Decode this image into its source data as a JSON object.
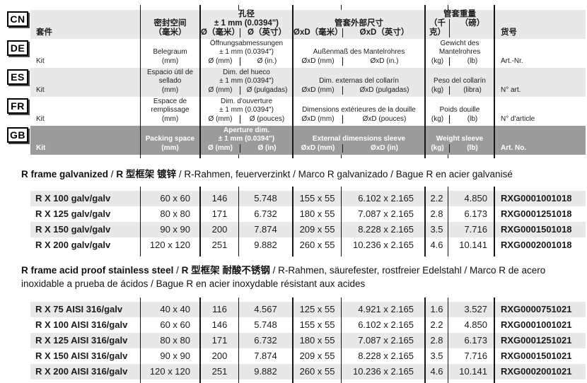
{
  "sep": " / ",
  "colors": {
    "row_light": "#e8e8e8",
    "row_dark": "#9b9b9b",
    "grid_line": "#151515",
    "badge_border": "#000000"
  },
  "header": {
    "rows": [
      {
        "lang": "CN",
        "kit": "套件",
        "packing": "密封空间\n（毫米）",
        "aperture": {
          "title": "孔径\n± 1 mm (0.0394\")",
          "mm": "Ø（毫米）",
          "inch": "Ø（英寸）"
        },
        "external": {
          "title": "管套外部尺寸",
          "mm": "ØxD（毫米）",
          "inch": "ØxD（英寸）"
        },
        "weight": {
          "title": "管套重量",
          "kg": "（千克）",
          "lb": "（磅）"
        },
        "art": "货号"
      },
      {
        "lang": "DE",
        "kit": "Kit",
        "packing": "Belegraum\n(mm)",
        "aperture": {
          "title": "Öffnungsabmessungen\n± 1 mm (0.0394\")",
          "mm": "Ø (mm)",
          "inch": "Ø (in.)"
        },
        "external": {
          "title": "Außenmaß des Mantelrohres",
          "mm": "ØxD (mm)",
          "inch": "ØxD (in.)"
        },
        "weight": {
          "title": "Gewicht des\nMantelrohres",
          "kg": "(kg)",
          "lb": "(lb)"
        },
        "art": "Art.-Nr."
      },
      {
        "lang": "ES",
        "kit": "Kit",
        "packing": "Espacio útil de\nsellado\n(mm)",
        "aperture": {
          "title": "Dim. del hueco\n± 1 mm (0.0394\")",
          "mm": "Ø (mm)",
          "inch": "Ø (pulgadas)"
        },
        "external": {
          "title": "Dim. externas del collarín",
          "mm": "ØxD (mm)",
          "inch": "ØxD (pulgadas)"
        },
        "weight": {
          "title": "Peso del collarín",
          "kg": "(kg)",
          "lb": "(libra)"
        },
        "art": "N° art."
      },
      {
        "lang": "FR",
        "kit": "Kit",
        "packing": "Espace de\nremplissage\n(mm)",
        "aperture": {
          "title": "Dim. d'ouverture\n± 1 mm (0.0394\")",
          "mm": "Ø (mm)",
          "inch": "Ø (pouces)"
        },
        "external": {
          "title": "Dimensions extérieures de la douille",
          "mm": "ØxD (mm)",
          "inch": "ØxD (pouces)"
        },
        "weight": {
          "title": "Poids douille",
          "kg": "(kg)",
          "lb": "(lb)"
        },
        "art": "N° d'article"
      },
      {
        "lang": "GB",
        "kit": "Kit",
        "packing": "Packing space\n(mm)",
        "aperture": {
          "title": "Aperture dim.\n± 1 mm (0.0394\")",
          "mm": "Ø (mm)",
          "inch": "Ø (in)"
        },
        "external": {
          "title": "External dimensions sleeve",
          "mm": "ØxD (mm)",
          "inch": "ØxD (in)"
        },
        "weight": {
          "title": "Weight sleeve",
          "kg": "(kg)",
          "lb": "(lb)"
        },
        "art": "Art. No."
      }
    ]
  },
  "sections": [
    {
      "title": {
        "en": "R frame galvanized",
        "cn": "R 型框架 镀锌",
        "rest": "R-Rahmen, feuerverzinkt / Marco R galvanizado / Bague R en acier galvanisé"
      },
      "rows": [
        {
          "kit": "R X 100 galv/galv",
          "packing": "60 x 60",
          "d_mm": "146",
          "d_in": "5.748",
          "e_mm": "155 x 55",
          "e_in": "6.102 x 2.165",
          "kg": "2.2",
          "lb": "4.850",
          "art": "RXG0001001018"
        },
        {
          "kit": "R X 125 galv/galv",
          "packing": "80 x 80",
          "d_mm": "171",
          "d_in": "6.732",
          "e_mm": "180 x 55",
          "e_in": "7.087 x 2.165",
          "kg": "2.8",
          "lb": "6.173",
          "art": "RXG0001251018"
        },
        {
          "kit": "R X 150 galv/galv",
          "packing": "90 x 90",
          "d_mm": "200",
          "d_in": "7.874",
          "e_mm": "209 x 55",
          "e_in": "8.228 x 2.165",
          "kg": "3.5",
          "lb": "7.716",
          "art": "RXG0001501018"
        },
        {
          "kit": "R X 200 galv/galv",
          "packing": "120 x 120",
          "d_mm": "251",
          "d_in": "9.882",
          "e_mm": "260 x 55",
          "e_in": "10.236 x 2.165",
          "kg": "4.6",
          "lb": "10.141",
          "art": "RXG0002001018"
        }
      ]
    },
    {
      "title": {
        "en": "R frame acid proof stainless steel",
        "cn": "R 型框架 耐酸不锈钢",
        "rest": "R-Rahmen, säurefester, rostfreier Edelstahl / Marco R de acero inoxidable a prueba de ácidos / Bague R en acier inoxydable résistant aux acides"
      },
      "rows": [
        {
          "kit": "R X 75 AISI 316/galv",
          "packing": "40 x 40",
          "d_mm": "116",
          "d_in": "4.567",
          "e_mm": "125 x 55",
          "e_in": "4.921 x 2.165",
          "kg": "1.6",
          "lb": "3.527",
          "art": "RXG0000751021"
        },
        {
          "kit": "R X 100 AISI 316/galv",
          "packing": "60 x 60",
          "d_mm": "146",
          "d_in": "5.748",
          "e_mm": "155 x 55",
          "e_in": "6.102 x 2.165",
          "kg": "2.2",
          "lb": "4.850",
          "art": "RXG0001001021"
        },
        {
          "kit": "R X 125 AISI 316/galv",
          "packing": "80 x 80",
          "d_mm": "171",
          "d_in": "6.732",
          "e_mm": "180 x 55",
          "e_in": "7.087 x 2.165",
          "kg": "2.8",
          "lb": "6.173",
          "art": "RXG0001251021"
        },
        {
          "kit": "R X 150 AISI 316/galv",
          "packing": "90 x 90",
          "d_mm": "200",
          "d_in": "7.874",
          "e_mm": "209 x 55",
          "e_in": "8.228 x 2.165",
          "kg": "3.5",
          "lb": "7.716",
          "art": "RXG0001501021"
        },
        {
          "kit": "R X 200 AISI 316/galv",
          "packing": "120 x 120",
          "d_mm": "251",
          "d_in": "9.882",
          "e_mm": "260 x 55",
          "e_in": "10.236 x 2.165",
          "kg": "4.6",
          "lb": "10.141",
          "art": "RXG0002001021"
        }
      ]
    }
  ]
}
